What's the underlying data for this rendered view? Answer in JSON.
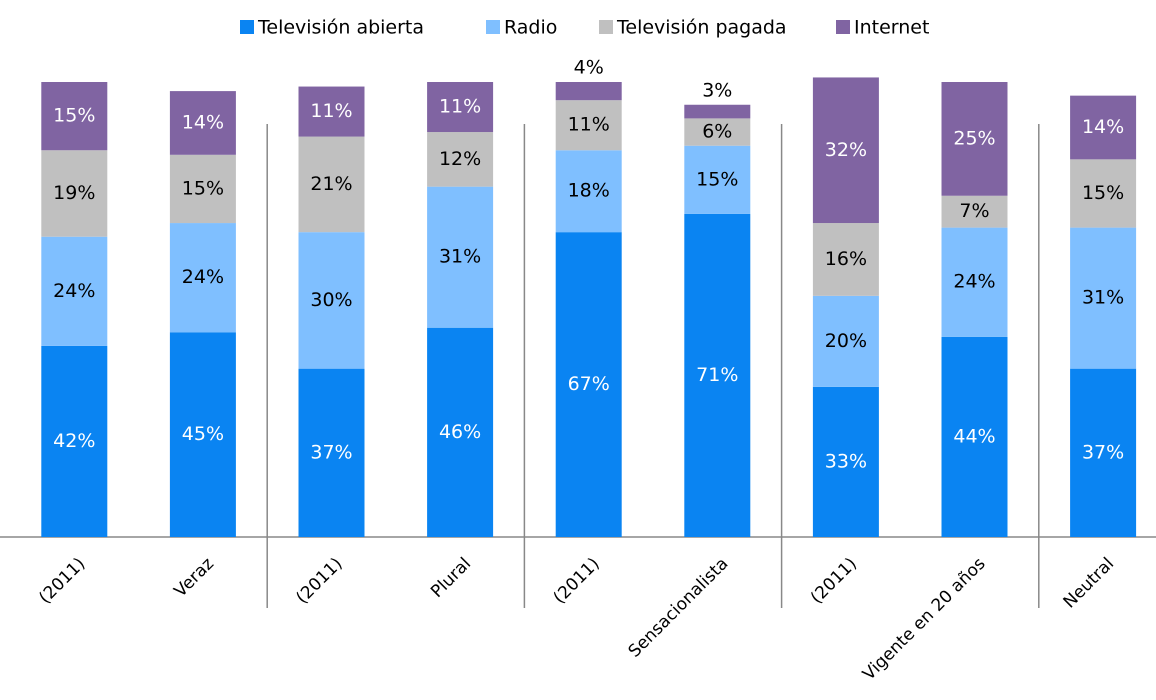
{
  "chart_data": {
    "type": "stacked_bar",
    "categories": [
      "(2011)",
      "Veraz",
      "(2011)",
      "Plural",
      "(2011)",
      "Sensacionalista",
      "(2011)",
      "Vigente en 20 años",
      "Neutral"
    ],
    "series": [
      {
        "name": "Televisión abierta",
        "color": "#0a84f2",
        "label_color": "#ffffff",
        "values": [
          42,
          45,
          37,
          46,
          67,
          71,
          33,
          44,
          37
        ],
        "value_labels": [
          "42%",
          "45%",
          "37%",
          "46%",
          "67%",
          "71%",
          "33%",
          "44%",
          "37%"
        ]
      },
      {
        "name": "Radio",
        "color": "#7fbfff",
        "label_color": "#000000",
        "values": [
          24,
          24,
          30,
          31,
          18,
          15,
          20,
          24,
          31
        ],
        "value_labels": [
          "24%",
          "24%",
          "30%",
          "31%",
          "18%",
          "15%",
          "20%",
          "24%",
          "31%"
        ]
      },
      {
        "name": "Televisión pagada",
        "color": "#c0c0c0",
        "label_color": "#000000",
        "values": [
          19,
          15,
          21,
          12,
          11,
          6,
          16,
          7,
          15
        ],
        "value_labels": [
          "19%",
          "15%",
          "21%",
          "12%",
          "11%",
          "6%",
          "16%",
          "7%",
          "15%"
        ]
      },
      {
        "name": "Internet",
        "color": "#8064a2",
        "label_color": "#ffffff",
        "values": [
          15,
          14,
          11,
          11,
          4,
          3,
          32,
          25,
          14
        ],
        "value_labels": [
          "15%",
          "14%",
          "11%",
          "11%",
          "4%",
          "3%",
          "32%",
          "25%",
          "14%"
        ]
      }
    ],
    "ylim": [
      0,
      100
    ],
    "legend": "top"
  }
}
